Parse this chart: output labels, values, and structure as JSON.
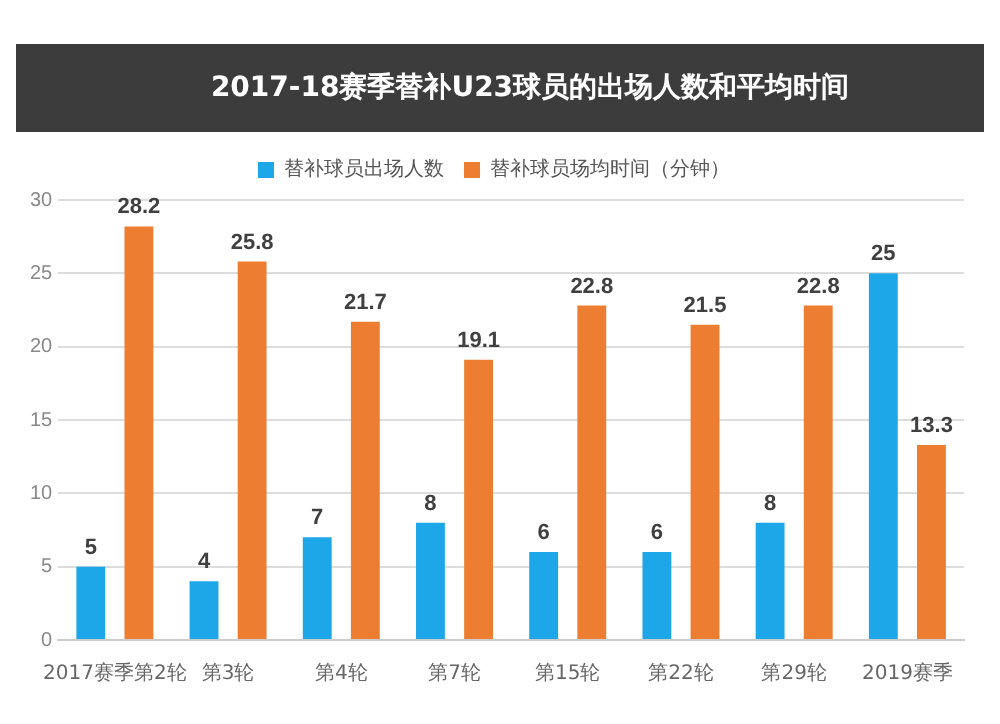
{
  "chart_data": {
    "type": "bar",
    "title": "2017-18赛季替补U23球员的出场人数和平均时间",
    "categories": [
      "2017赛季第2轮",
      "第3轮",
      "第4轮",
      "第7轮",
      "第15轮",
      "第22轮",
      "第29轮",
      "2019赛季"
    ],
    "series": [
      {
        "name": "替补球员出场人数",
        "color": "#1ea7e8",
        "values": [
          5,
          4,
          7,
          8,
          6,
          6,
          8,
          25
        ]
      },
      {
        "name": "替补球员场均时间（分钟）",
        "color": "#ed7d31",
        "values": [
          28.2,
          25.8,
          21.7,
          19.1,
          22.8,
          21.5,
          22.8,
          13.3
        ]
      }
    ],
    "ylim": [
      0,
      30
    ],
    "yticks": [
      0,
      5,
      10,
      15,
      20,
      25,
      30
    ],
    "grid": "y",
    "legend": "top",
    "data_labels": true
  }
}
